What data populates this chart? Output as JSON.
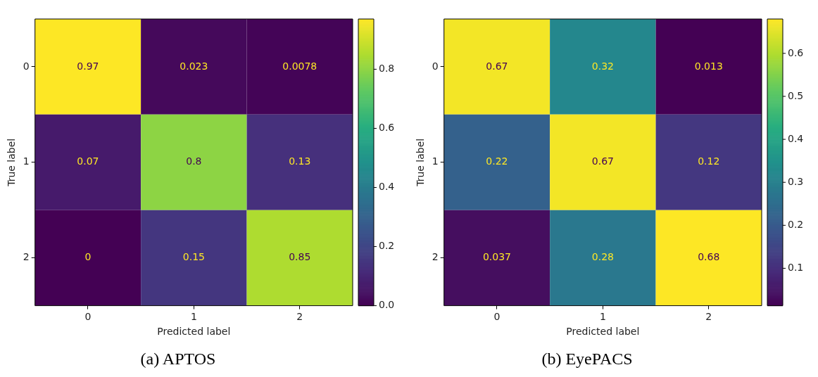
{
  "chart_data": [
    {
      "type": "heatmap",
      "title": "(a) APTOS",
      "xlabel": "Predicted label",
      "ylabel": "True label",
      "categories": [
        "0",
        "1",
        "2"
      ],
      "y_categories": [
        "0",
        "1",
        "2"
      ],
      "cells": [
        [
          0.97,
          0.023,
          0.0078
        ],
        [
          0.07,
          0.8,
          0.13
        ],
        [
          0,
          0.15,
          0.85
        ]
      ],
      "data_labels": true,
      "clim": [
        0,
        0.97
      ],
      "cticks": [
        {
          "value": 0,
          "label": "0.0"
        },
        0.2,
        0.4,
        0.6,
        0.8
      ]
    },
    {
      "type": "heatmap",
      "title": "(b) EyePACS",
      "xlabel": "Predicted label",
      "ylabel": "True label",
      "categories": [
        "0",
        "1",
        "2"
      ],
      "y_categories": [
        "0",
        "1",
        "2"
      ],
      "cells": [
        [
          0.67,
          0.32,
          0.013
        ],
        [
          0.22,
          0.67,
          0.12
        ],
        [
          0.037,
          0.28,
          0.68
        ]
      ],
      "data_labels": true,
      "clim": [
        0.013,
        0.68
      ],
      "cticks": [
        0.1,
        0.2,
        0.3,
        0.4,
        0.5,
        0.6
      ]
    }
  ]
}
